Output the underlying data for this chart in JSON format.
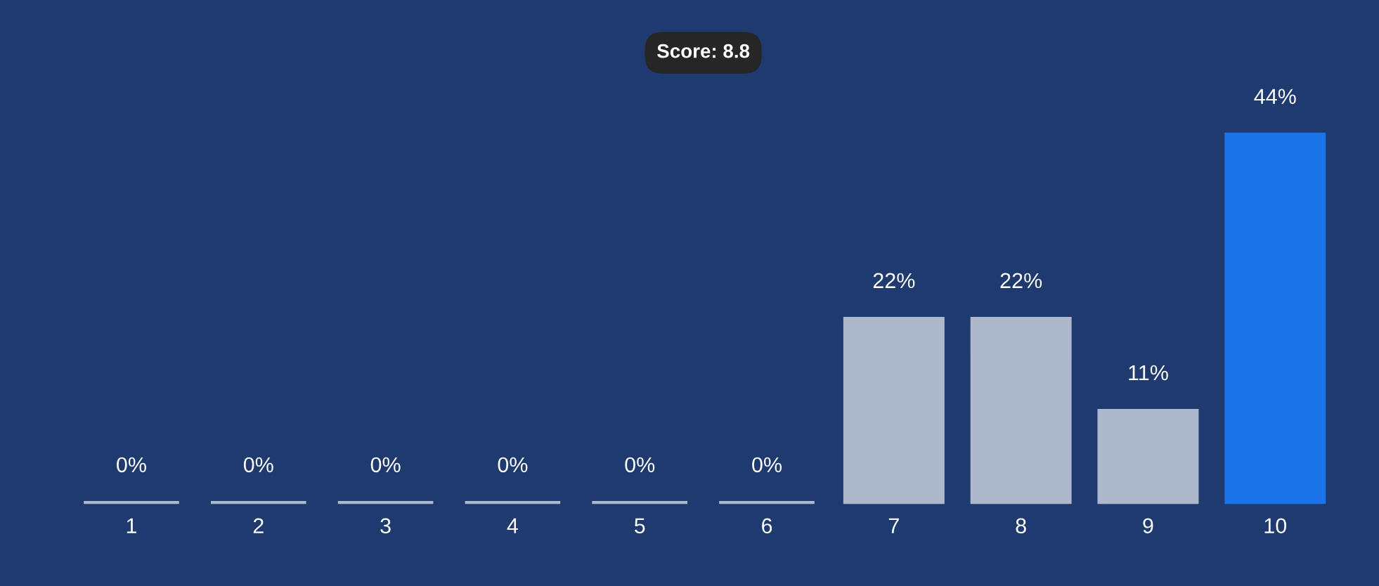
{
  "chart_data": {
    "type": "bar",
    "title": "Score: 8.8",
    "categories": [
      "1",
      "2",
      "3",
      "4",
      "5",
      "6",
      "7",
      "8",
      "9",
      "10"
    ],
    "values": [
      0,
      0,
      0,
      0,
      0,
      0,
      22,
      22,
      11,
      44
    ],
    "value_labels": [
      "0%",
      "0%",
      "0%",
      "0%",
      "0%",
      "0%",
      "22%",
      "22%",
      "11%",
      "44%"
    ],
    "colors": [
      "#aeb8cc",
      "#aeb8cc",
      "#aeb8cc",
      "#aeb8cc",
      "#aeb8cc",
      "#aeb8cc",
      "#aeb8cc",
      "#aeb8cc",
      "#aeb8cc",
      "#1a73e8"
    ],
    "grid": false,
    "legend": false
  }
}
